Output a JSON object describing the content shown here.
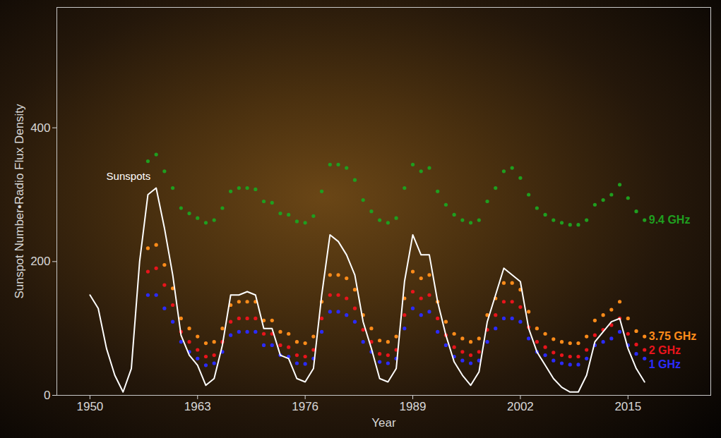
{
  "chart_data": {
    "type": "line",
    "x_label": "Year",
    "y_label": "Sunspot Number•Radio Flux Density",
    "x": [
      1950,
      1951,
      1952,
      1953,
      1954,
      1955,
      1956,
      1957,
      1958,
      1959,
      1960,
      1961,
      1962,
      1963,
      1964,
      1965,
      1966,
      1967,
      1968,
      1969,
      1970,
      1971,
      1972,
      1973,
      1974,
      1975,
      1976,
      1977,
      1978,
      1979,
      1980,
      1981,
      1982,
      1983,
      1984,
      1985,
      1986,
      1987,
      1988,
      1989,
      1990,
      1991,
      1992,
      1993,
      1994,
      1995,
      1996,
      1997,
      1998,
      1999,
      2000,
      2001,
      2002,
      2003,
      2004,
      2005,
      2006,
      2007,
      2008,
      2009,
      2010,
      2011,
      2012,
      2013,
      2014,
      2015,
      2016,
      2017
    ],
    "xlim": [
      1946,
      2025
    ],
    "xticks": [
      1950,
      1963,
      1976,
      1989,
      2002,
      2015
    ],
    "ylim": [
      0,
      580
    ],
    "yticks": [
      0,
      200,
      400
    ],
    "grid": false,
    "series": [
      {
        "name": "Sunspots",
        "color": "#ffffff",
        "type": "line",
        "line_style": "solid",
        "values": [
          150,
          130,
          70,
          30,
          5,
          40,
          200,
          300,
          310,
          250,
          180,
          90,
          60,
          45,
          15,
          25,
          75,
          150,
          150,
          155,
          150,
          100,
          100,
          60,
          55,
          25,
          20,
          40,
          150,
          240,
          230,
          210,
          180,
          110,
          70,
          25,
          20,
          40,
          170,
          240,
          210,
          210,
          140,
          90,
          50,
          30,
          15,
          35,
          110,
          150,
          190,
          180,
          170,
          100,
          65,
          45,
          25,
          12,
          5,
          5,
          30,
          80,
          95,
          110,
          115,
          70,
          40,
          20
        ]
      },
      {
        "name": "9.4 GHz",
        "color": "#1f9e1f",
        "type": "scatter",
        "marker": "dot",
        "values": [
          null,
          null,
          null,
          null,
          null,
          null,
          null,
          350,
          360,
          335,
          310,
          280,
          272,
          265,
          258,
          262,
          280,
          305,
          310,
          310,
          308,
          290,
          288,
          272,
          270,
          260,
          258,
          268,
          305,
          345,
          345,
          340,
          322,
          292,
          275,
          262,
          258,
          265,
          310,
          345,
          335,
          340,
          305,
          285,
          270,
          262,
          258,
          262,
          290,
          310,
          335,
          340,
          325,
          300,
          280,
          270,
          262,
          258,
          255,
          255,
          262,
          285,
          292,
          300,
          315,
          295,
          275,
          262
        ]
      },
      {
        "name": "3.75 GHz",
        "color": "#ff8c1a",
        "type": "scatter",
        "marker": "dot",
        "values": [
          null,
          null,
          null,
          null,
          null,
          null,
          null,
          220,
          225,
          195,
          160,
          115,
          100,
          88,
          78,
          80,
          100,
          135,
          140,
          140,
          140,
          112,
          112,
          95,
          92,
          80,
          78,
          88,
          140,
          180,
          180,
          175,
          158,
          120,
          100,
          82,
          80,
          88,
          145,
          185,
          175,
          180,
          140,
          110,
          92,
          85,
          80,
          85,
          120,
          145,
          168,
          168,
          158,
          125,
          100,
          92,
          84,
          80,
          78,
          78,
          88,
          112,
          120,
          128,
          140,
          115,
          96,
          88
        ]
      },
      {
        "name": "2 GHz",
        "color": "#e8141c",
        "type": "scatter",
        "marker": "dot",
        "values": [
          null,
          null,
          null,
          null,
          null,
          null,
          null,
          185,
          190,
          165,
          135,
          95,
          80,
          68,
          58,
          60,
          80,
          110,
          115,
          115,
          115,
          92,
          92,
          75,
          72,
          60,
          58,
          68,
          115,
          150,
          150,
          145,
          130,
          98,
          80,
          62,
          60,
          68,
          120,
          155,
          145,
          150,
          115,
          90,
          72,
          65,
          60,
          65,
          98,
          120,
          140,
          140,
          132,
          102,
          80,
          72,
          64,
          60,
          58,
          58,
          68,
          90,
          98,
          105,
          115,
          92,
          76,
          68
        ]
      },
      {
        "name": "1 GHz",
        "color": "#2b2bff",
        "type": "scatter",
        "marker": "dot",
        "values": [
          null,
          null,
          null,
          null,
          null,
          null,
          null,
          150,
          150,
          130,
          110,
          80,
          65,
          55,
          45,
          48,
          65,
          90,
          95,
          95,
          95,
          75,
          75,
          60,
          58,
          48,
          47,
          55,
          95,
          125,
          125,
          120,
          110,
          80,
          65,
          50,
          48,
          55,
          100,
          130,
          120,
          125,
          95,
          75,
          58,
          52,
          48,
          52,
          80,
          100,
          115,
          115,
          110,
          85,
          65,
          60,
          52,
          48,
          46,
          46,
          55,
          75,
          80,
          85,
          95,
          75,
          62,
          55
        ]
      }
    ]
  }
}
